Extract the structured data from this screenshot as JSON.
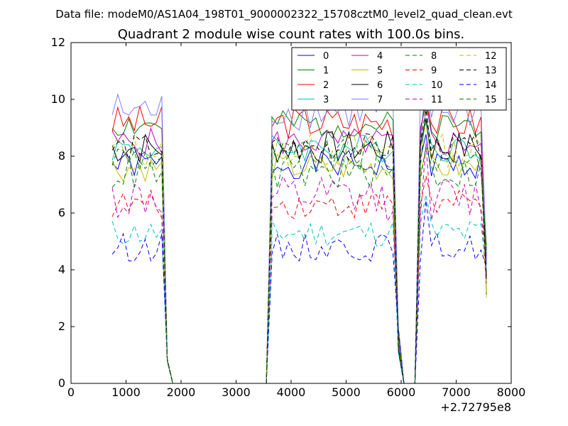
{
  "chart_data": {
    "type": "line",
    "supertitle": "Data file: modeM0/AS1A04_198T01_9000002322_15708cztM0_level2_quad_clean.evt",
    "title": "Quadrant 2 module wise count rates with 100.0s bins.",
    "xlabel": "",
    "ylabel": "",
    "x_offset_label": "+2.72795e8",
    "xlim": [
      0,
      8000
    ],
    "ylim": [
      0,
      12
    ],
    "xticks": [
      "0",
      "1000",
      "2000",
      "3000",
      "4000",
      "5000",
      "6000",
      "7000",
      "8000"
    ],
    "yticks": [
      "0",
      "2",
      "4",
      "6",
      "8",
      "10",
      "12"
    ],
    "legend_position": "top-right",
    "segments": {
      "seg1_x": [
        750,
        850,
        950,
        1050,
        1150,
        1250,
        1350,
        1450,
        1550,
        1650
      ],
      "seg1_end_x": [
        1750,
        1850
      ],
      "zero_x": [
        1850,
        3550
      ],
      "seg2_rise_x": [
        3550,
        3650
      ],
      "seg2_x": [
        3650,
        3750,
        3850,
        3950,
        4050,
        4150,
        4250,
        4350,
        4450,
        4550,
        4650,
        4750,
        4850,
        4950,
        5050,
        5150,
        5250,
        5350,
        5450,
        5550,
        5650,
        5750,
        5850
      ],
      "seg2_end_x": [
        5950,
        6050
      ],
      "zero2_x": [
        6050,
        6250
      ],
      "seg3_x": [
        6350,
        6450,
        6550,
        6650,
        6750,
        6850,
        6950,
        7050,
        7150,
        7250,
        7350,
        7450,
        7550
      ]
    },
    "series": [
      {
        "name": "0",
        "color": "#0000ff",
        "dash": false,
        "level": 7.7,
        "noise": 0.25,
        "seed": 1
      },
      {
        "name": "1",
        "color": "#008000",
        "dash": false,
        "level": 9.1,
        "noise": 0.25,
        "seed": 2
      },
      {
        "name": "2",
        "color": "#ff0000",
        "dash": false,
        "level": 9.2,
        "noise": 0.3,
        "seed": 3
      },
      {
        "name": "3",
        "color": "#00bfbf",
        "dash": false,
        "level": 8.3,
        "noise": 0.25,
        "seed": 4
      },
      {
        "name": "4",
        "color": "#bf00bf",
        "dash": false,
        "level": 8.5,
        "noise": 0.25,
        "seed": 5
      },
      {
        "name": "5",
        "color": "#bfbf00",
        "dash": false,
        "level": 7.6,
        "noise": 0.25,
        "seed": 6
      },
      {
        "name": "6",
        "color": "#000000",
        "dash": false,
        "level": 8.3,
        "noise": 0.3,
        "seed": 7
      },
      {
        "name": "7",
        "color": "#7f7fff",
        "dash": false,
        "level": 9.6,
        "noise": 0.35,
        "seed": 8
      },
      {
        "name": "8",
        "color": "#008000",
        "dash": true,
        "level": 8.0,
        "noise": 0.3,
        "seed": 9
      },
      {
        "name": "9",
        "color": "#ff0000",
        "dash": true,
        "level": 6.3,
        "noise": 0.25,
        "seed": 10
      },
      {
        "name": "10",
        "color": "#00bfbf",
        "dash": true,
        "level": 5.3,
        "noise": 0.25,
        "seed": 11
      },
      {
        "name": "11",
        "color": "#bf00bf",
        "dash": true,
        "level": 6.5,
        "noise": 0.4,
        "seed": 12
      },
      {
        "name": "12",
        "color": "#bfbf00",
        "dash": true,
        "level": 8.2,
        "noise": 0.3,
        "seed": 13
      },
      {
        "name": "13",
        "color": "#000000",
        "dash": true,
        "level": 8.3,
        "noise": 0.25,
        "seed": 14
      },
      {
        "name": "14",
        "color": "#0000ff",
        "dash": true,
        "level": 4.8,
        "noise": 0.25,
        "seed": 15
      },
      {
        "name": "15",
        "color": "#008000",
        "dash": true,
        "level": 7.4,
        "noise": 0.3,
        "seed": 16
      }
    ]
  }
}
